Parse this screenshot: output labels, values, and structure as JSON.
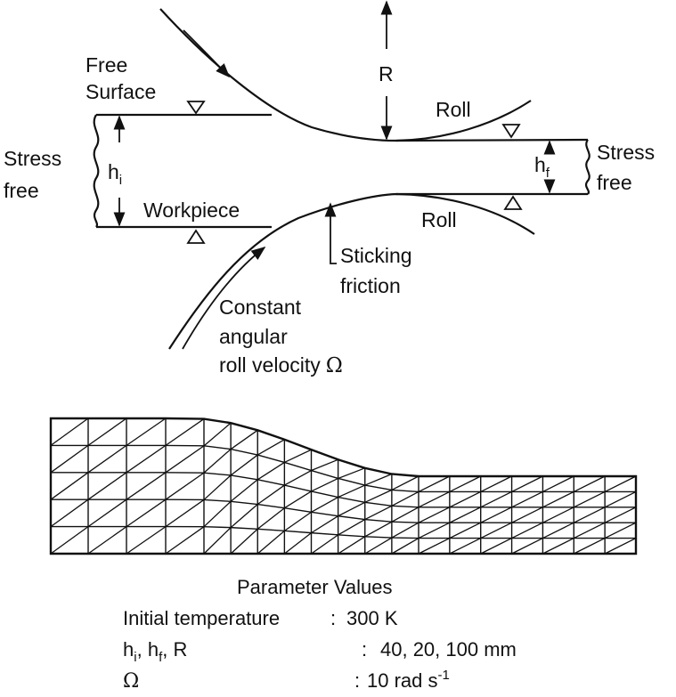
{
  "labels": {
    "free_surface_line1": "Free",
    "free_surface_line2": "Surface",
    "radius": "R",
    "roll_top": "Roll",
    "roll_bottom": "Roll",
    "stress_free_left_line1": "Stress",
    "stress_free_left_line2": "free",
    "stress_free_right_line1": "Stress",
    "stress_free_right_line2": "free",
    "h_initial_base": "h",
    "h_initial_sub": "i",
    "h_final_base": "h",
    "h_final_sub": "f",
    "workpiece": "Workpiece",
    "sticking_line1": "Sticking",
    "sticking_line2": "friction",
    "velocity_line1": "Constant",
    "velocity_line2": "angular",
    "velocity_line3": "roll velocity",
    "omega_symbol": "Ω"
  },
  "parameters": {
    "title": "Parameter Values",
    "rows": [
      {
        "label": "Initial temperature",
        "sep": ":",
        "value": "300 K"
      },
      {
        "label_parts": [
          "h",
          "i",
          ", h",
          "f",
          ", R"
        ],
        "sep": ":",
        "value": "40, 20, 100 mm"
      },
      {
        "label": "Ω",
        "sep": ":",
        "value_base": "10 rad s",
        "value_sup": "-1"
      }
    ]
  },
  "mesh": {
    "columns": 16,
    "rows": 5
  }
}
